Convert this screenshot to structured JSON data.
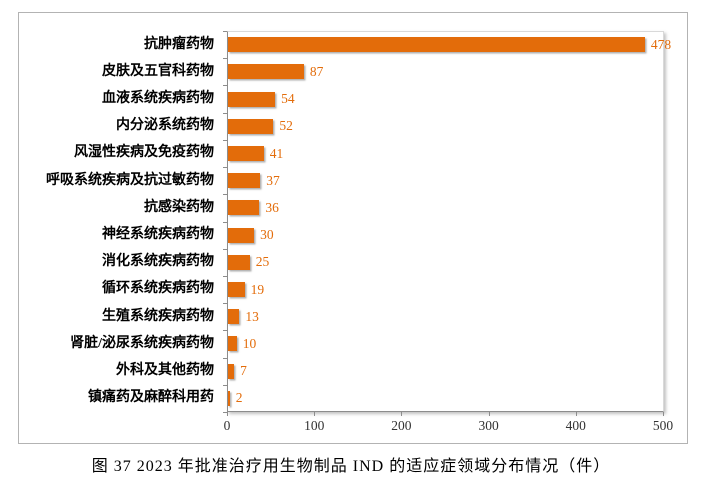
{
  "caption": "图 37  2023 年批准治疗用生物制品 IND 的适应症领域分布情况（件）",
  "chart_data": {
    "type": "bar",
    "orientation": "horizontal",
    "title": "",
    "xlabel": "",
    "ylabel": "",
    "categories": [
      "抗肿瘤药物",
      "皮肤及五官科药物",
      "血液系统疾病药物",
      "内分泌系统药物",
      "风湿性疾病及免疫药物",
      "呼吸系统疾病及抗过敏药物",
      "抗感染药物",
      "神经系统疾病药物",
      "消化系统疾病药物",
      "循环系统疾病药物",
      "生殖系统疾病药物",
      "肾脏/泌尿系统疾病药物",
      "外科及其他药物",
      "镇痛药及麻醉科用药"
    ],
    "values": [
      478,
      87,
      54,
      52,
      41,
      37,
      36,
      30,
      25,
      19,
      13,
      10,
      7,
      2
    ],
    "xlim": [
      0,
      500
    ],
    "x_ticks": [
      0,
      100,
      200,
      300,
      400,
      500
    ],
    "grid": false,
    "legend_position": "none",
    "bar_color": "#e36c0a",
    "value_label_color": "#e36c0a",
    "axis_color": "#8c8c8c",
    "frame_color": "#d9d9d9"
  }
}
